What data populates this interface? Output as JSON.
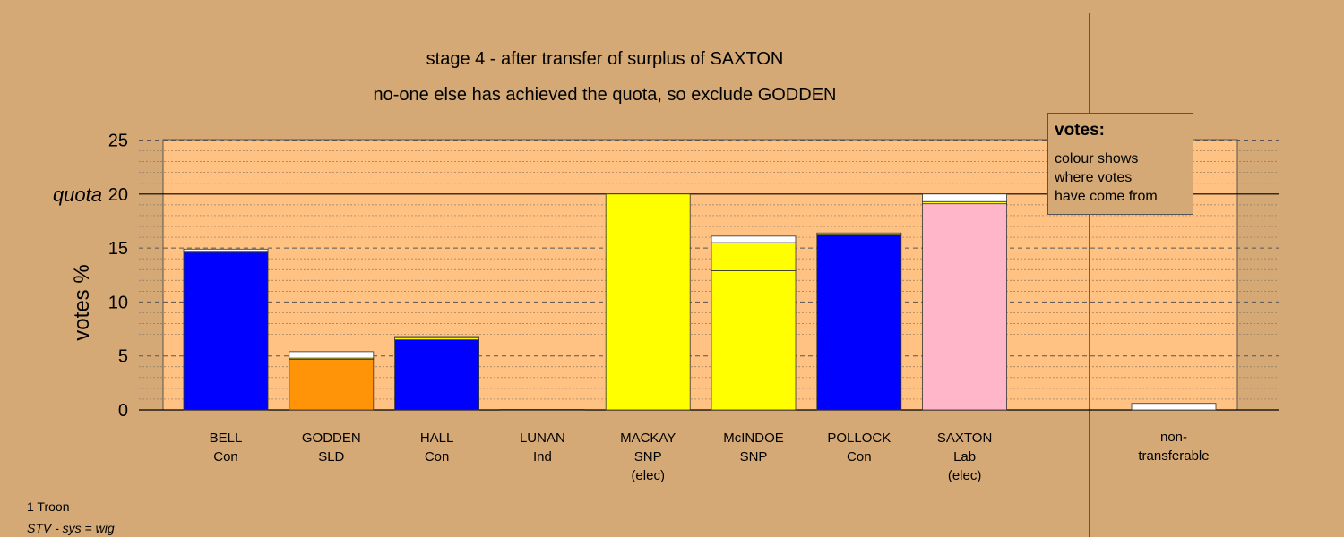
{
  "chart_data": {
    "type": "bar",
    "stacked": true,
    "title": "stage 4 - after transfer of surplus of SAXTON",
    "subtitle": "no-one else has achieved the quota, so exclude GODDEN",
    "ylabel": "votes %",
    "ylim": [
      0,
      25
    ],
    "yticks": [
      "0",
      "5",
      "10",
      "15",
      "20",
      "25"
    ],
    "quota": {
      "value": 20,
      "label": "quota"
    },
    "candidates": [
      {
        "name": "BELL",
        "party": "Con",
        "status": "",
        "segments": [
          {
            "value": 14.6,
            "color": "#0000ff"
          },
          {
            "value": 0.1,
            "color": "#ffff00"
          },
          {
            "value": 0.2,
            "color": "#ffffff"
          }
        ]
      },
      {
        "name": "GODDEN",
        "party": "SLD",
        "status": "",
        "segments": [
          {
            "value": 4.7,
            "color": "#ff9408"
          },
          {
            "value": 0.1,
            "color": "#ffff00"
          },
          {
            "value": 0.6,
            "color": "#ffffff"
          }
        ]
      },
      {
        "name": "HALL",
        "party": "Con",
        "status": "",
        "segments": [
          {
            "value": 6.5,
            "color": "#0000ff"
          },
          {
            "value": 0.2,
            "color": "#ffff00"
          },
          {
            "value": 0.1,
            "color": "#ffffff"
          }
        ]
      },
      {
        "name": "LUNAN",
        "party": "Ind",
        "status": "",
        "segments": [
          {
            "value": 0.05,
            "color": "#ff9408"
          }
        ]
      },
      {
        "name": "MACKAY",
        "party": "SNP",
        "status": "(elec)",
        "segments": [
          {
            "value": 20.0,
            "color": "#ffff00"
          }
        ]
      },
      {
        "name": "McINDOE",
        "party": "SNP",
        "status": "",
        "segments": [
          {
            "value": 12.9,
            "color": "#ffff00"
          },
          {
            "value": 2.6,
            "color": "#ffff00"
          },
          {
            "value": 0.6,
            "color": "#ffffff"
          }
        ]
      },
      {
        "name": "POLLOCK",
        "party": "Con",
        "status": "",
        "segments": [
          {
            "value": 16.2,
            "color": "#0000ff"
          },
          {
            "value": 0.1,
            "color": "#ffff00"
          },
          {
            "value": 0.1,
            "color": "#ffffff"
          }
        ]
      },
      {
        "name": "SAXTON",
        "party": "Lab",
        "status": "(elec)",
        "segments": [
          {
            "value": 19.1,
            "color": "#ffb6c8"
          },
          {
            "value": 0.2,
            "color": "#ffff00"
          },
          {
            "value": 0.7,
            "color": "#ffffff"
          }
        ]
      }
    ],
    "non_transferable": {
      "label_line1": "non-",
      "label_line2": "transferable",
      "value": 0.6,
      "color": "#ffffff"
    },
    "grid": true
  },
  "legend": {
    "title": "votes:",
    "lines": [
      "colour shows",
      "where votes",
      "have come from"
    ]
  },
  "footer": {
    "line1": "1 Troon",
    "line2": "STV - sys = wig"
  }
}
